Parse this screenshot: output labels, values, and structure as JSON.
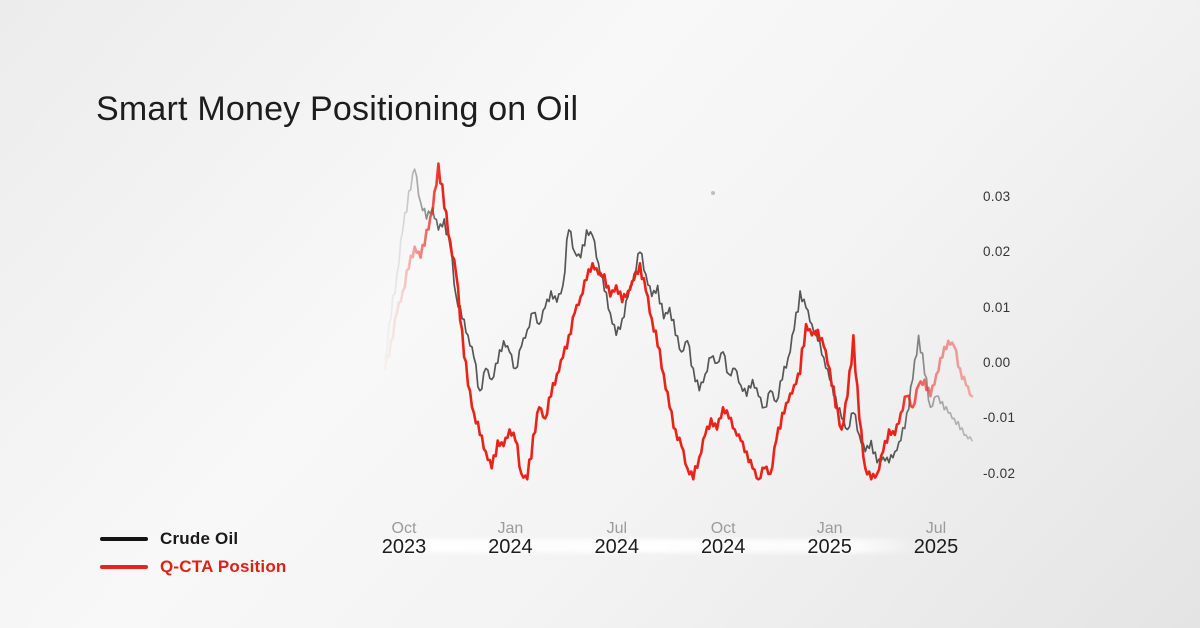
{
  "title": "Smart Money Positioning on Oil",
  "legend": [
    {
      "label": "Crude Oil",
      "color": "#141414",
      "text_color": "#1a1a1a"
    },
    {
      "label": "Q-CTA Position",
      "color": "#e8231a",
      "text_color": "#e02017"
    }
  ],
  "chart_data": {
    "type": "line",
    "title": "Smart Money Positioning on Oil",
    "xlabel": "",
    "ylabel": "",
    "grid": false,
    "legend_position": "bottom-left",
    "ylim": [
      -0.025,
      0.0385
    ],
    "y_ticks": [
      0.03,
      0.02,
      0.01,
      0.0,
      -0.01,
      -0.02
    ],
    "y_tick_labels": [
      "0.03",
      "0.02",
      "0.01",
      "0.00",
      "-0.01",
      "-0.02"
    ],
    "x_tick_labels": [
      {
        "month": "Oct",
        "year": "2023"
      },
      {
        "month": "Jan",
        "year": "2024"
      },
      {
        "month": "Jul",
        "year": "2024"
      },
      {
        "month": "Oct",
        "year": "2024"
      },
      {
        "month": "Jan",
        "year": "2025"
      },
      {
        "month": "Jul",
        "year": "2025"
      }
    ],
    "x_range_note": "weekly samples, Sep 2023 - Aug 2025, lines fade in at start and fade out at end",
    "series": [
      {
        "name": "Crude Oil",
        "color": "#565656",
        "line_width": 1.7,
        "values": [
          0.001,
          0.008,
          0.016,
          0.024,
          0.031,
          0.035,
          0.029,
          0.026,
          0.028,
          0.024,
          0.026,
          0.021,
          0.012,
          0.008,
          0.005,
          0.001,
          -0.005,
          -0.001,
          -0.003,
          0.0,
          0.004,
          0.002,
          -0.001,
          0.003,
          0.006,
          0.009,
          0.007,
          0.01,
          0.013,
          0.011,
          0.014,
          0.024,
          0.02,
          0.019,
          0.024,
          0.023,
          0.018,
          0.013,
          0.009,
          0.005,
          0.008,
          0.012,
          0.016,
          0.02,
          0.016,
          0.012,
          0.014,
          0.008,
          0.01,
          0.005,
          0.002,
          0.004,
          -0.001,
          -0.005,
          -0.002,
          0.001,
          0.0,
          0.002,
          -0.002,
          -0.001,
          -0.004,
          -0.006,
          -0.003,
          -0.006,
          -0.008,
          -0.005,
          -0.007,
          -0.003,
          0.001,
          0.006,
          0.013,
          0.01,
          0.007,
          0.004,
          0.001,
          -0.003,
          -0.006,
          -0.01,
          -0.012,
          -0.009,
          -0.013,
          -0.016,
          -0.014,
          -0.018,
          -0.017,
          -0.018,
          -0.016,
          -0.014,
          -0.009,
          -0.003,
          0.005,
          -0.002,
          -0.008,
          -0.006,
          -0.007,
          -0.009,
          -0.01,
          -0.012,
          -0.013,
          -0.014
        ]
      },
      {
        "name": "Q-CTA Position",
        "color": "#ea2318",
        "line_width": 2.6,
        "values": [
          -0.001,
          0.004,
          0.009,
          0.013,
          0.017,
          0.021,
          0.019,
          0.024,
          0.027,
          0.036,
          0.028,
          0.022,
          0.016,
          0.006,
          -0.004,
          -0.009,
          -0.013,
          -0.016,
          -0.019,
          -0.014,
          -0.015,
          -0.012,
          -0.014,
          -0.02,
          -0.021,
          -0.013,
          -0.008,
          -0.01,
          -0.006,
          -0.002,
          0.001,
          0.005,
          0.009,
          0.012,
          0.015,
          0.018,
          0.016,
          0.016,
          0.012,
          0.014,
          0.011,
          0.013,
          0.015,
          0.018,
          0.013,
          0.008,
          0.003,
          -0.002,
          -0.008,
          -0.012,
          -0.015,
          -0.019,
          -0.021,
          -0.017,
          -0.013,
          -0.01,
          -0.012,
          -0.008,
          -0.01,
          -0.012,
          -0.014,
          -0.016,
          -0.019,
          -0.021,
          -0.019,
          -0.02,
          -0.014,
          -0.009,
          -0.007,
          -0.004,
          -0.002,
          0.007,
          0.005,
          0.006,
          0.003,
          -0.001,
          -0.008,
          -0.012,
          -0.006,
          0.005,
          -0.01,
          -0.019,
          -0.021,
          -0.02,
          -0.016,
          -0.012,
          -0.013,
          -0.009,
          -0.006,
          -0.008,
          -0.004,
          -0.003,
          -0.006,
          -0.002,
          0.001,
          0.004,
          0.003,
          -0.001,
          -0.004,
          -0.006
        ]
      }
    ]
  }
}
